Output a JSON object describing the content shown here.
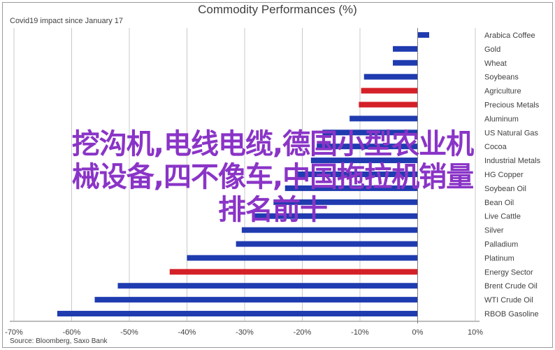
{
  "chart_data": {
    "type": "bar",
    "orientation": "horizontal",
    "title": "Commodity Performances (%)",
    "subtitle": "Covid19 impact since January 17",
    "source": "Source: Bloomberg, Saxo Bank",
    "xlim": [
      -70,
      10
    ],
    "xticks": [
      "-70%",
      "-60%",
      "-50%",
      "-40%",
      "-30%",
      "-20%",
      "-10%",
      "0%",
      "10%"
    ],
    "grid": "vertical",
    "categories": [
      "Arabica Coffee",
      "Gold",
      "Wheat",
      "Soybeans",
      "Agriculture",
      "Precious Metals",
      "Aluminum",
      "US Natural Gas",
      "Cocoa",
      "Industrial Metals",
      "HG Copper",
      "Soybean Oil",
      "Bean Oil",
      "Live Cattle",
      "Silver",
      "Palladium",
      "Platinum",
      "Energy Sector",
      "Brent Crude Oil",
      "WTI Crude Oil",
      "RBOB Gasoline"
    ],
    "values": [
      2,
      -4.3,
      -4.3,
      -9.3,
      -9.8,
      -10.2,
      -11.8,
      -16.5,
      -17.5,
      -18.5,
      -21,
      -23,
      -25,
      -28.5,
      -30.5,
      -31.5,
      -40,
      -43,
      -52,
      -56,
      -62.5
    ],
    "highlight": [
      false,
      false,
      false,
      false,
      true,
      true,
      false,
      false,
      false,
      false,
      false,
      false,
      false,
      false,
      false,
      false,
      false,
      true,
      false,
      false,
      false
    ],
    "colors": {
      "bar": "#1f3bb0",
      "highlight": "#d42027",
      "grid": "#c8c8c8",
      "text": "#404040"
    }
  },
  "overlay_text": {
    "line1": "挖沟机,电线电缆,德国小型农业机",
    "line2": "械设备,四不像车,中国拖拉机销量",
    "line3": "排名前十"
  }
}
